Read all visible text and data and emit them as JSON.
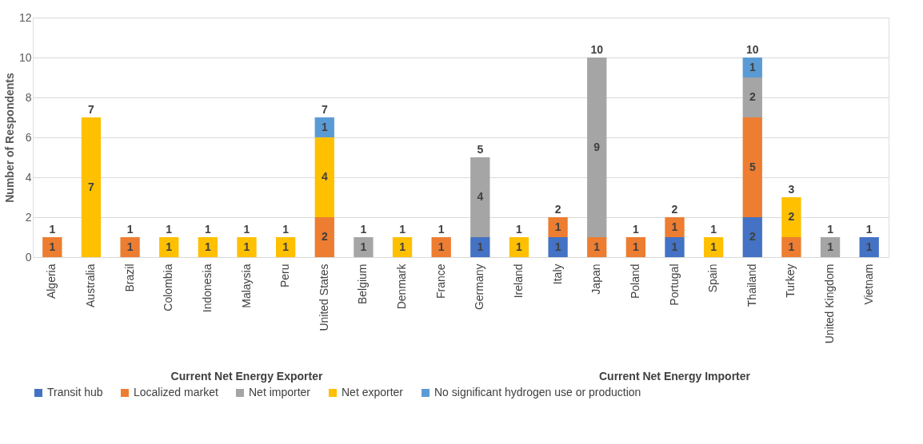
{
  "chart_data": {
    "type": "bar",
    "ylabel": "Number of Respondents",
    "categories": [
      "Algeria",
      "Australia",
      "Brazil",
      "Colombia",
      "Indonesia",
      "Malaysia",
      "Peru",
      "United States",
      "Belgium",
      "Denmark",
      "France",
      "Germany",
      "Ireland",
      "Italy",
      "Japan",
      "Poland",
      "Portugal",
      "Spain",
      "Thailand",
      "Turkey",
      "United Kingdom",
      "Vietnam"
    ],
    "stacked": true,
    "series": [
      {
        "name": "Transit hub",
        "color": "#4472c4",
        "values": [
          null,
          null,
          null,
          null,
          null,
          null,
          null,
          null,
          null,
          null,
          null,
          1,
          null,
          1,
          null,
          null,
          1,
          null,
          2,
          null,
          null,
          1
        ]
      },
      {
        "name": "Localized market",
        "color": "#ed7d31",
        "values": [
          1,
          null,
          1,
          null,
          null,
          null,
          null,
          2,
          null,
          null,
          1,
          null,
          null,
          1,
          1,
          1,
          1,
          null,
          5,
          1,
          null,
          null
        ]
      },
      {
        "name": "Net importer",
        "color": "#a5a5a5",
        "values": [
          null,
          null,
          null,
          null,
          null,
          null,
          null,
          null,
          1,
          null,
          null,
          4,
          null,
          null,
          9,
          null,
          null,
          null,
          2,
          null,
          1,
          null
        ]
      },
      {
        "name": "Net exporter",
        "color": "#ffc000",
        "values": [
          null,
          7,
          null,
          1,
          1,
          1,
          1,
          4,
          null,
          1,
          null,
          null,
          1,
          null,
          null,
          null,
          null,
          1,
          null,
          2,
          null,
          null
        ]
      },
      {
        "name": "No significant hydrogen use or production",
        "color": "#5b9bd5",
        "values": [
          null,
          null,
          null,
          null,
          null,
          null,
          null,
          1,
          null,
          null,
          null,
          null,
          null,
          null,
          null,
          null,
          null,
          null,
          1,
          null,
          null,
          null
        ]
      }
    ],
    "totals": [
      "1",
      "7",
      "1",
      "1",
      "1",
      "1",
      "1",
      "7",
      "1",
      "1",
      "1",
      "5",
      "1",
      "2",
      "10",
      "1",
      "2",
      "1",
      "10",
      "3",
      "1",
      "1"
    ],
    "data_labels": true,
    "ylim": [
      0,
      12
    ],
    "yticks": [
      0,
      2,
      4,
      6,
      8,
      10,
      12
    ],
    "grid": "y",
    "legend": "bottom",
    "annotations": [
      "Current Net Energy Exporter",
      "Current Net Energy Importer"
    ]
  }
}
